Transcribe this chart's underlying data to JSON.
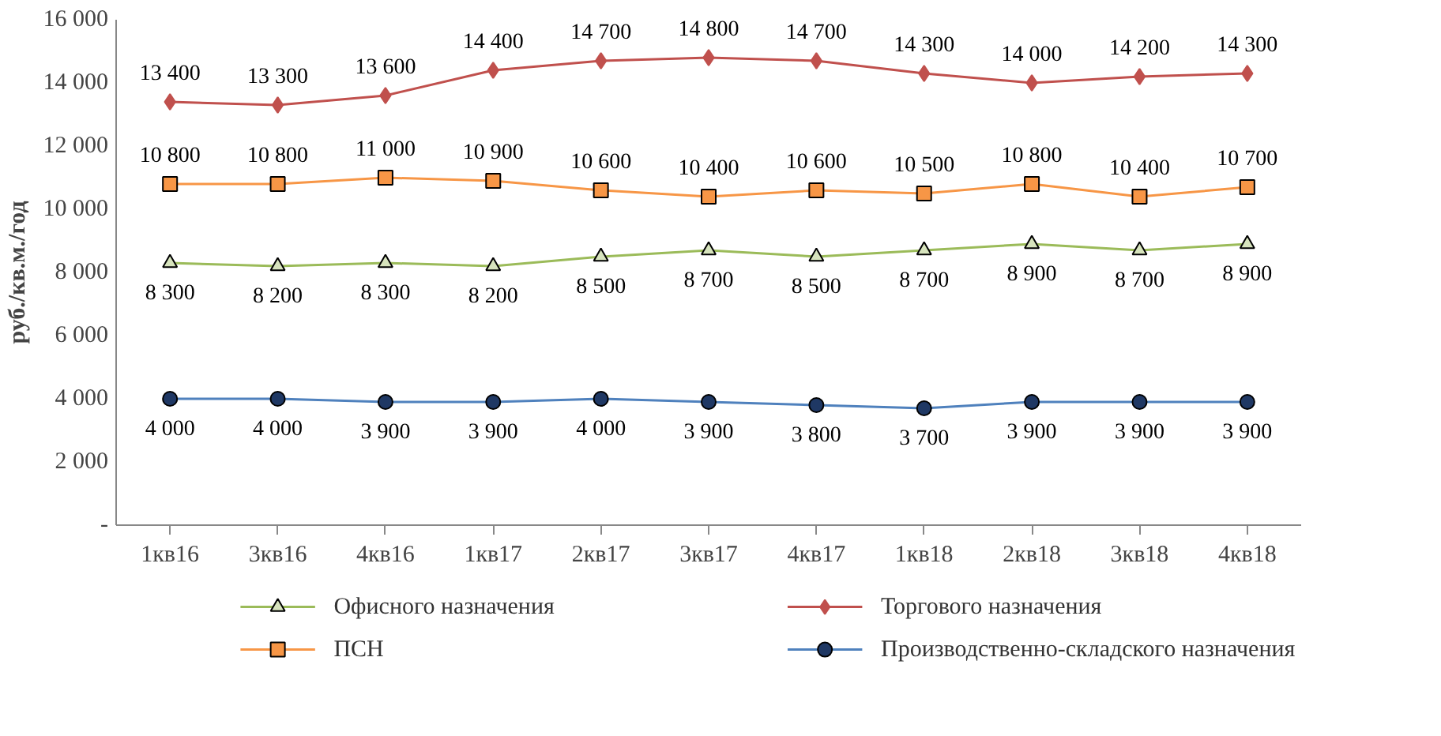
{
  "chart_data": {
    "type": "line",
    "ylabel": "руб./кв.м./год",
    "categories": [
      "1кв16",
      "3кв16",
      "4кв16",
      "1кв17",
      "2кв17",
      "3кв17",
      "4кв17",
      "1кв18",
      "2кв18",
      "3кв18",
      "4кв18"
    ],
    "ylim": [
      0,
      16000
    ],
    "yticks": [
      {
        "value": 0,
        "label": "-"
      },
      {
        "value": 2000,
        "label": "2 000"
      },
      {
        "value": 4000,
        "label": "4 000"
      },
      {
        "value": 6000,
        "label": "6 000"
      },
      {
        "value": 8000,
        "label": "8 000"
      },
      {
        "value": 10000,
        "label": "10 000"
      },
      {
        "value": 12000,
        "label": "12 000"
      },
      {
        "value": 14000,
        "label": "14 000"
      },
      {
        "value": 16000,
        "label": "16 000"
      }
    ],
    "grid": false,
    "legend": "bottom",
    "data_labels": true,
    "line_style": "solid",
    "series": [
      {
        "name": "Офисного назначения",
        "color": "#9bbb59",
        "marker": "triangle",
        "values": [
          8300,
          8200,
          8300,
          8200,
          8500,
          8700,
          8500,
          8700,
          8900,
          8700,
          8900
        ]
      },
      {
        "name": "Торгового назначения",
        "color": "#c0504d",
        "marker": "diamond",
        "values": [
          13400,
          13300,
          13600,
          14400,
          14700,
          14800,
          14700,
          14300,
          14000,
          14200,
          14300
        ]
      },
      {
        "name": "ПСН",
        "color": "#f79646",
        "marker": "square",
        "values": [
          10800,
          10800,
          11000,
          10900,
          10600,
          10400,
          10600,
          10500,
          10800,
          10400,
          10700
        ]
      },
      {
        "name": "Производственно-складского назначения",
        "color": "#4f81bd",
        "marker": "circle",
        "values": [
          4000,
          4000,
          3900,
          3900,
          4000,
          3900,
          3800,
          3700,
          3900,
          3900,
          3900
        ]
      }
    ]
  }
}
